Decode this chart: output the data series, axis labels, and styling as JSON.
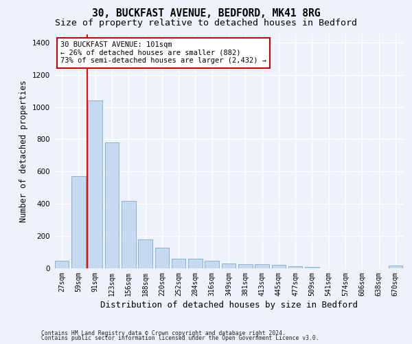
{
  "title_line1": "30, BUCKFAST AVENUE, BEDFORD, MK41 8RG",
  "title_line2": "Size of property relative to detached houses in Bedford",
  "xlabel": "Distribution of detached houses by size in Bedford",
  "ylabel": "Number of detached properties",
  "categories": [
    "27sqm",
    "59sqm",
    "91sqm",
    "123sqm",
    "156sqm",
    "188sqm",
    "220sqm",
    "252sqm",
    "284sqm",
    "316sqm",
    "349sqm",
    "381sqm",
    "413sqm",
    "445sqm",
    "477sqm",
    "509sqm",
    "541sqm",
    "574sqm",
    "606sqm",
    "638sqm",
    "670sqm"
  ],
  "values": [
    45,
    570,
    1040,
    780,
    420,
    180,
    130,
    60,
    60,
    45,
    30,
    25,
    25,
    20,
    12,
    8,
    0,
    0,
    0,
    0,
    18
  ],
  "bar_color": "#c6d9f0",
  "bar_edge_color": "#7aabcf",
  "red_line_index": 2,
  "annotation_text_line1": "30 BUCKFAST AVENUE: 101sqm",
  "annotation_text_line2": "← 26% of detached houses are smaller (882)",
  "annotation_text_line3": "73% of semi-detached houses are larger (2,432) →",
  "annotation_box_color": "#ffffff",
  "annotation_box_edge_color": "#cc0000",
  "ylim": [
    0,
    1450
  ],
  "yticks": [
    0,
    200,
    400,
    600,
    800,
    1000,
    1200,
    1400
  ],
  "footer_line1": "Contains HM Land Registry data © Crown copyright and database right 2024.",
  "footer_line2": "Contains public sector information licensed under the Open Government Licence v3.0.",
  "bg_color": "#eef2fa",
  "grid_color": "#ffffff",
  "title_fontsize": 10.5,
  "subtitle_fontsize": 9.5,
  "tick_fontsize": 7,
  "ylabel_fontsize": 8.5,
  "xlabel_fontsize": 9
}
